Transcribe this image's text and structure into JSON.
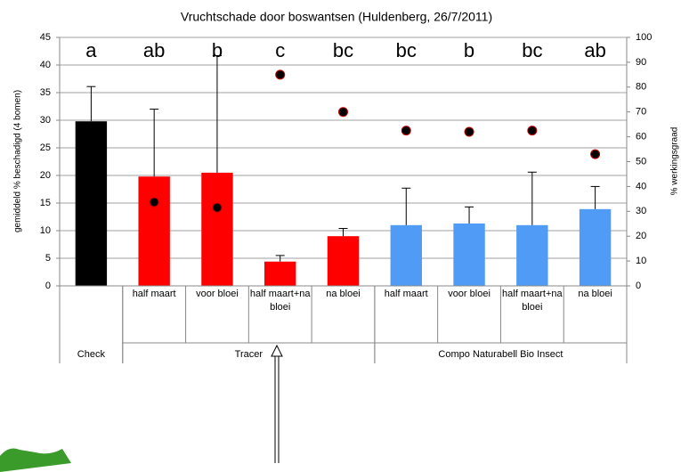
{
  "chart_data": {
    "type": "bar",
    "title": "Vruchtschade door boswantsen (Huldenberg, 26/7/2011)",
    "y_label": "gemiddeld % beschadigd (4 bomen)",
    "y2_label": "% werkingsgraad",
    "groups": [
      {
        "name": "Check",
        "categories": [
          null
        ]
      },
      {
        "name": "Tracer",
        "categories": [
          "half maart",
          "voor bloei",
          "half maart+na bloei",
          "na bloei"
        ]
      },
      {
        "name": "Compo Naturabell Bio Insect",
        "categories": [
          "half maart",
          "voor bloei",
          "half maart+na bloei",
          "na bloei"
        ]
      }
    ],
    "annotations": [
      "a",
      "ab",
      "b",
      "c",
      "bc",
      "bc",
      "b",
      "bc",
      "ab"
    ],
    "series": [
      {
        "type": "bar",
        "values": [
          29.8,
          19.8,
          20.5,
          4.4,
          9.0,
          11.0,
          11.3,
          11.0,
          13.9
        ],
        "errors": [
          6.3,
          12.2,
          21.2,
          1.1,
          1.4,
          6.7,
          3.0,
          9.6,
          4.1
        ],
        "colors": [
          "#000000",
          "#ff0000",
          "#ff0000",
          "#ff0000",
          "#ff0000",
          "#4f9bf5",
          "#4f9bf5",
          "#4f9bf5",
          "#4f9bf5"
        ]
      },
      {
        "type": "scatter",
        "axis": "y2",
        "values": [
          null,
          33.7,
          31.5,
          85,
          70,
          62.5,
          62,
          62.5,
          53
        ],
        "color": "#000000"
      }
    ],
    "ylim": [
      0,
      45
    ],
    "yticks": [
      0,
      5,
      10,
      15,
      20,
      25,
      30,
      35,
      40,
      45
    ],
    "y2lim": [
      0,
      100
    ],
    "y2ticks": [
      0,
      10,
      20,
      30,
      40,
      50,
      60,
      70,
      80,
      90,
      100
    ],
    "grid": true
  }
}
